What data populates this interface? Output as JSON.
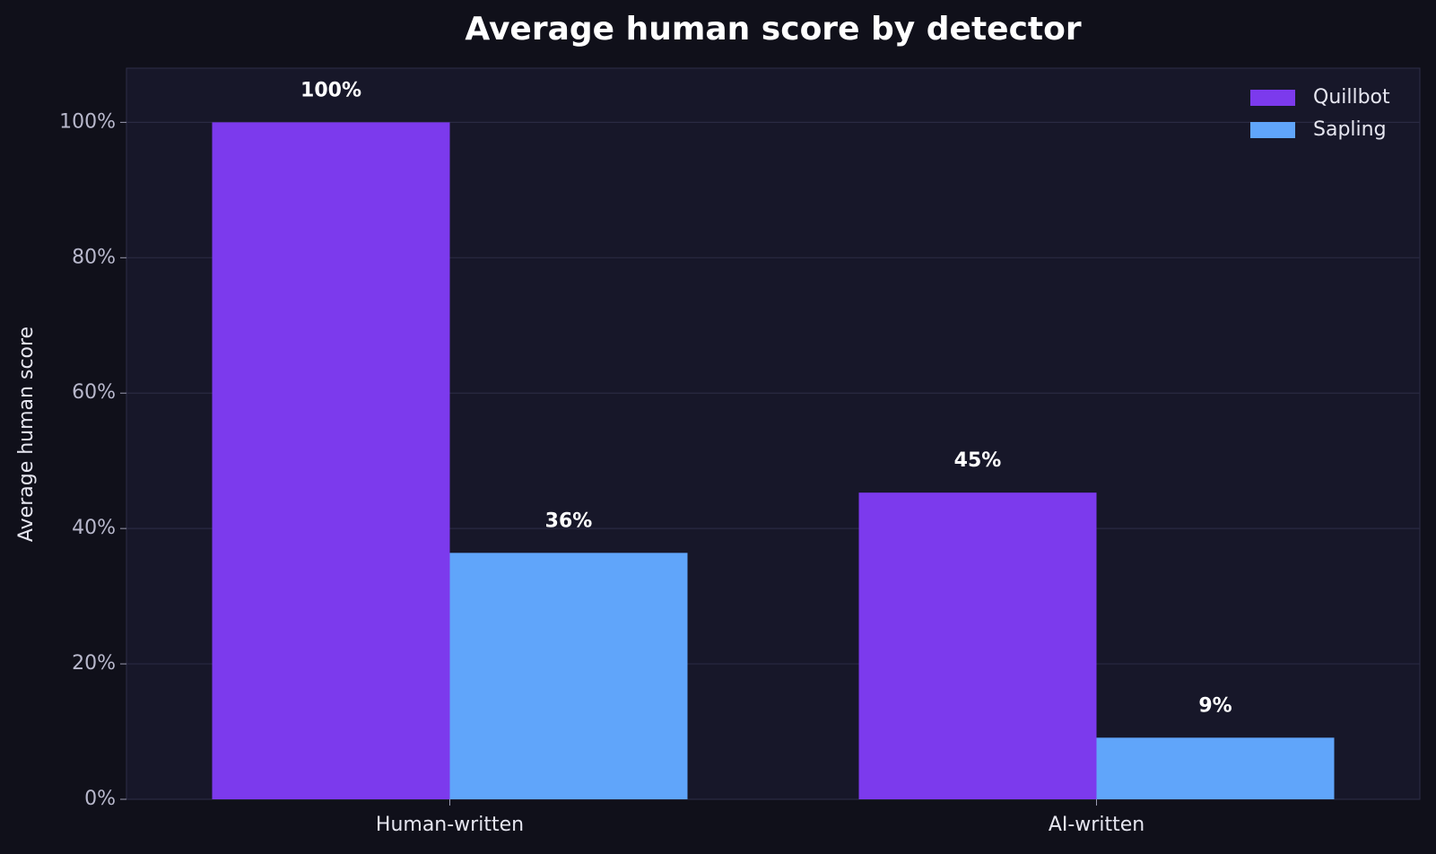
{
  "chart_data": {
    "type": "bar",
    "title": "Average human score by detector",
    "ylabel": "Average human score",
    "categories": [
      "Human-written",
      "AI-written"
    ],
    "series": [
      {
        "name": "Quillbot",
        "color": "#7c3aed",
        "values": [
          100,
          45.3
        ],
        "value_labels": [
          "100%",
          "45%"
        ]
      },
      {
        "name": "Sapling",
        "color": "#60a5fa",
        "values": [
          36.4,
          9.1
        ],
        "value_labels": [
          "36%",
          "9%"
        ]
      }
    ],
    "ylim": [
      0,
      108
    ],
    "yticks": [
      {
        "value": 0,
        "label": "0%"
      },
      {
        "value": 20,
        "label": "20%"
      },
      {
        "value": 40,
        "label": "40%"
      },
      {
        "value": 60,
        "label": "60%"
      },
      {
        "value": 80,
        "label": "80%"
      },
      {
        "value": 100,
        "label": "100%"
      }
    ],
    "grid": true,
    "legend": "upper right"
  }
}
